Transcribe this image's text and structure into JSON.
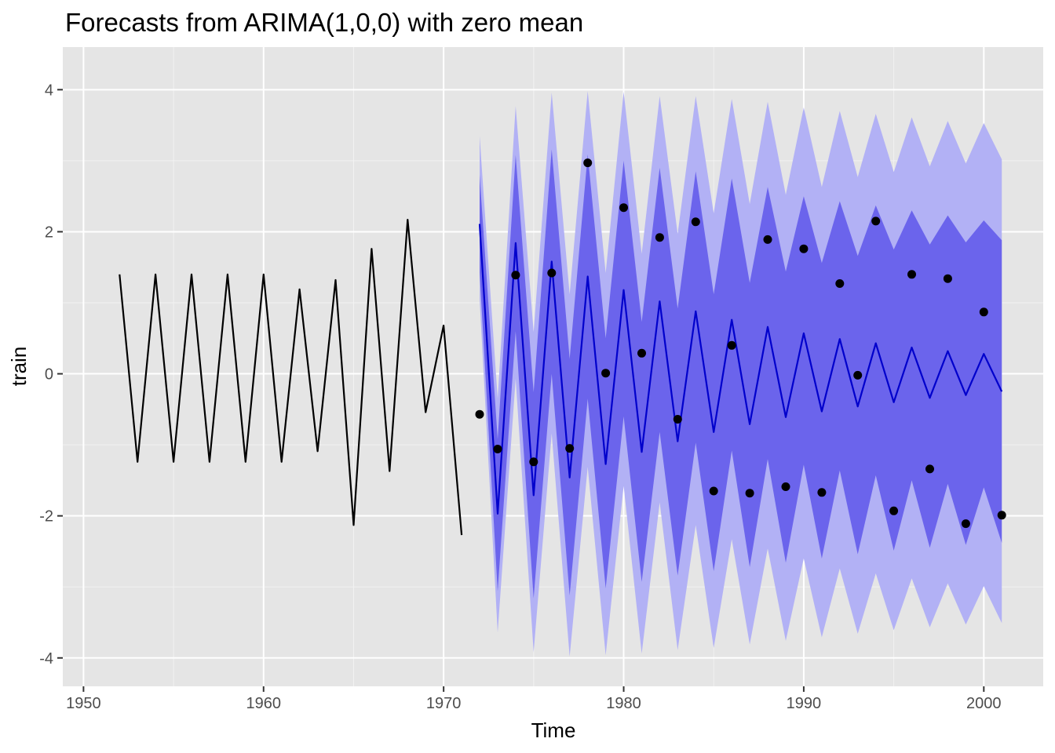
{
  "chart_data": {
    "type": "line",
    "title": "Forecasts from ARIMA(1,0,0) with zero mean",
    "xlabel": "Time",
    "ylabel": "train",
    "xlim": [
      1948.85,
      2003.3
    ],
    "ylim": [
      -4.4,
      4.6
    ],
    "x_ticks": [
      1950,
      1960,
      1970,
      1980,
      1990,
      2000
    ],
    "y_ticks": [
      -4,
      -2,
      0,
      2,
      4
    ],
    "x_tick_labels": [
      "1950",
      "1960",
      "1970",
      "1980",
      "1990",
      "2000"
    ],
    "y_tick_labels": [
      "-4",
      "-2",
      "0",
      "2",
      "4"
    ],
    "grid": true,
    "background": "#e5e5e5",
    "colors": {
      "history": "#000000",
      "forecast": "#0000cc",
      "band80": "#6b64ec",
      "band95": "#b2b1f5",
      "points": "#000000"
    },
    "history": {
      "x": [
        1952,
        1953,
        1954,
        1955,
        1956,
        1957,
        1958,
        1959,
        1960,
        1961,
        1962,
        1963,
        1964,
        1965,
        1966,
        1967,
        1968,
        1969,
        1970,
        1971
      ],
      "y": [
        1.4,
        -1.24,
        1.4,
        -1.24,
        1.4,
        -1.24,
        1.4,
        -1.24,
        1.4,
        -1.24,
        1.19,
        -1.09,
        1.32,
        -2.13,
        1.76,
        -1.37,
        2.17,
        -0.54,
        0.68,
        -2.27
      ]
    },
    "forecast": {
      "x": [
        1972,
        1973,
        1974,
        1975,
        1976,
        1977,
        1978,
        1979,
        1980,
        1981,
        1982,
        1983,
        1984,
        1985,
        1986,
        1987,
        1988,
        1989,
        1990,
        1991,
        1992,
        1993,
        1994,
        1995,
        1996,
        1997,
        1998,
        1999,
        2000,
        2001
      ],
      "mean": [
        2.11,
        -1.97,
        1.84,
        -1.71,
        1.58,
        -1.46,
        1.37,
        -1.27,
        1.18,
        -1.1,
        1.02,
        -0.95,
        0.88,
        -0.82,
        0.76,
        -0.71,
        0.66,
        -0.61,
        0.57,
        -0.53,
        0.49,
        -0.46,
        0.43,
        -0.4,
        0.37,
        -0.34,
        0.32,
        -0.3,
        0.28,
        -0.25
      ],
      "lo80": [
        1.43,
        -3.06,
        0.6,
        -3.16,
        0.0,
        -3.12,
        -0.35,
        -3.02,
        -0.6,
        -2.93,
        -0.82,
        -2.84,
        -0.97,
        -2.78,
        -1.08,
        -2.72,
        -1.2,
        -2.66,
        -1.28,
        -2.6,
        -1.36,
        -2.54,
        -1.43,
        -2.49,
        -1.5,
        -2.45,
        -1.55,
        -2.41,
        -1.6,
        -2.38
      ],
      "hi80": [
        2.8,
        -0.92,
        3.08,
        -0.26,
        3.16,
        0.21,
        3.09,
        0.5,
        3.0,
        0.73,
        2.9,
        0.92,
        2.85,
        1.12,
        2.75,
        1.28,
        2.63,
        1.44,
        2.5,
        1.56,
        2.43,
        1.66,
        2.37,
        1.75,
        2.3,
        1.82,
        2.23,
        1.85,
        2.16,
        1.88
      ],
      "lo95": [
        1.05,
        -3.64,
        -0.07,
        -3.92,
        -0.84,
        -3.98,
        -1.31,
        -3.96,
        -1.58,
        -3.94,
        -1.81,
        -3.89,
        -2.13,
        -3.86,
        -2.33,
        -3.81,
        -2.46,
        -3.76,
        -2.6,
        -3.71,
        -2.74,
        -3.66,
        -2.81,
        -3.61,
        -2.88,
        -3.57,
        -2.95,
        -3.53,
        -2.99,
        -3.51
      ],
      "hi95": [
        3.35,
        -0.35,
        3.77,
        0.59,
        3.96,
        1.12,
        3.98,
        1.42,
        3.97,
        1.69,
        3.91,
        1.97,
        3.91,
        2.26,
        3.87,
        2.39,
        3.83,
        2.52,
        3.75,
        2.63,
        3.7,
        2.77,
        3.66,
        2.84,
        3.61,
        2.92,
        3.56,
        2.96,
        3.53,
        3.02
      ]
    },
    "test_points": {
      "x": [
        1972,
        1973,
        1974,
        1975,
        1976,
        1977,
        1978,
        1979,
        1980,
        1981,
        1982,
        1983,
        1984,
        1985,
        1986,
        1987,
        1988,
        1989,
        1990,
        1991,
        1992,
        1993,
        1994,
        1995,
        1996,
        1997,
        1998,
        1999,
        2000,
        2001
      ],
      "y": [
        -0.57,
        -1.06,
        1.39,
        -1.24,
        1.42,
        -1.05,
        2.97,
        0.01,
        2.34,
        0.29,
        1.92,
        -0.64,
        2.14,
        -1.65,
        0.4,
        -1.68,
        1.89,
        -1.59,
        1.76,
        -1.67,
        1.27,
        -0.02,
        2.15,
        -1.93,
        1.4,
        -1.34,
        1.34,
        -2.11,
        0.87,
        -1.99
      ]
    }
  }
}
